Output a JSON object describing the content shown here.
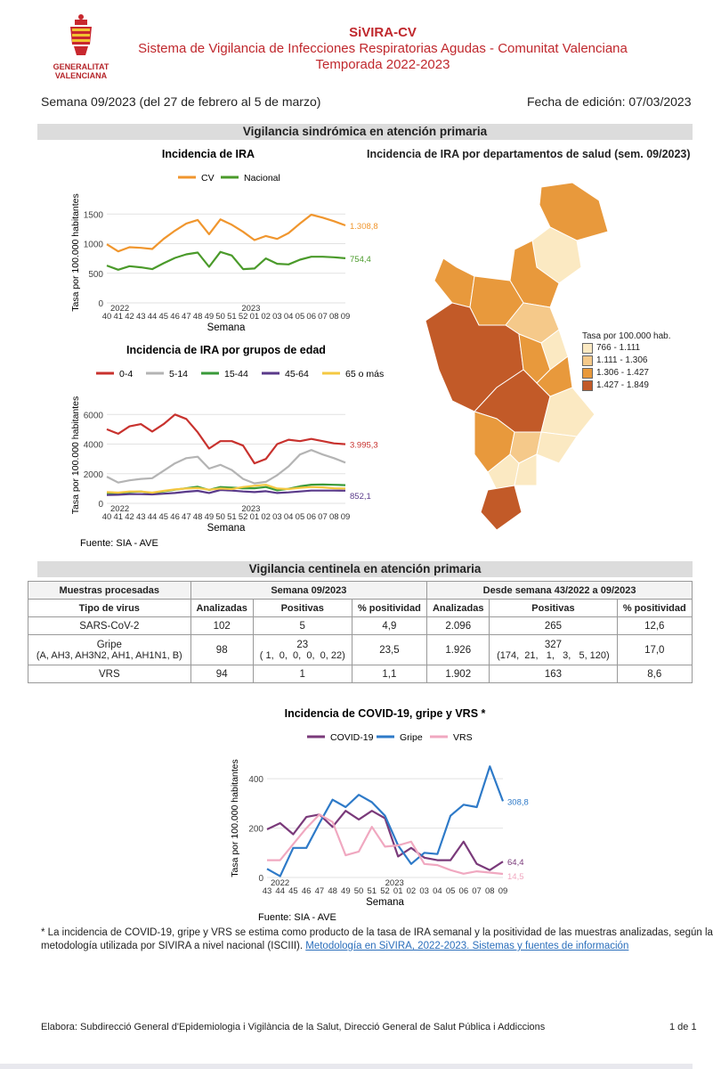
{
  "header": {
    "title": "SiVIRA-CV",
    "subtitle": "Sistema de Vigilancia de Infecciones Respiratorias Agudas - Comunitat Valenciana",
    "season": "Temporada 2022-2023",
    "logo_text_1": "GENERALITAT",
    "logo_text_2": "VALENCIANA",
    "week": "Semana 09/2023 (del 27 de febrero al 5 de marzo)",
    "edition_date": "Fecha de edición: 07/03/2023"
  },
  "section1_title": "Vigilancia sindrómica en atención primaria",
  "section2_title": "Vigilancia centinela en atención primaria",
  "colors": {
    "cv": "#f0962e",
    "nacional": "#4a9a2a",
    "age_0_4": "#c8322e",
    "age_5_14": "#b4b4b4",
    "age_15_44": "#3a9a3a",
    "age_45_64": "#5a3a8a",
    "age_65": "#f5c842",
    "covid": "#7a3a7a",
    "gripe": "#2e7ac8",
    "vrs": "#f0a8c0"
  },
  "chart_data": [
    {
      "type": "line",
      "title": "Incidencia de IRA",
      "xlabel": "Semana",
      "ylabel": "Tasa por 100.000 habitantes",
      "x": [
        "40",
        "41",
        "42",
        "43",
        "44",
        "45",
        "46",
        "47",
        "48",
        "49",
        "50",
        "51",
        "52",
        "01",
        "02",
        "03",
        "04",
        "05",
        "06",
        "07",
        "08",
        "09"
      ],
      "year_labels": [
        "2022",
        "2023"
      ],
      "yticks": [
        "0",
        "500",
        "1000",
        "1500"
      ],
      "ylim": [
        0,
        1700
      ],
      "series": [
        {
          "name": "CV",
          "values": [
            990,
            870,
            940,
            930,
            910,
            1080,
            1220,
            1340,
            1400,
            1160,
            1410,
            1320,
            1200,
            1060,
            1130,
            1080,
            1180,
            1340,
            1490,
            1440,
            1380,
            1308.8
          ],
          "end_label": "1.308,8"
        },
        {
          "name": "Nacional",
          "values": [
            630,
            560,
            620,
            600,
            570,
            670,
            760,
            820,
            850,
            610,
            860,
            800,
            570,
            580,
            750,
            660,
            650,
            730,
            780,
            780,
            770,
            754.4
          ],
          "end_label": "754,4"
        }
      ]
    },
    {
      "type": "line",
      "title": "Incidencia de IRA por grupos de edad",
      "xlabel": "Semana",
      "ylabel": "Tasa por 100.000 habitantes",
      "x": [
        "40",
        "41",
        "42",
        "43",
        "44",
        "45",
        "46",
        "47",
        "48",
        "49",
        "50",
        "51",
        "52",
        "01",
        "02",
        "03",
        "04",
        "05",
        "06",
        "07",
        "08",
        "09"
      ],
      "year_labels": [
        "2022",
        "2023"
      ],
      "yticks": [
        "0",
        "2000",
        "4000",
        "6000"
      ],
      "ylim": [
        0,
        6500
      ],
      "series": [
        {
          "name": "0-4",
          "values": [
            5000,
            4700,
            5200,
            5350,
            4850,
            5350,
            6000,
            5700,
            4800,
            3700,
            4200,
            4200,
            3900,
            2700,
            3000,
            4000,
            4300,
            4200,
            4350,
            4200,
            4050,
            3995.3
          ],
          "end_label": "3.995,3"
        },
        {
          "name": "5-14",
          "values": [
            1800,
            1400,
            1550,
            1650,
            1700,
            2200,
            2700,
            3050,
            3150,
            2350,
            2600,
            2250,
            1650,
            1350,
            1450,
            1900,
            2500,
            3300,
            3600,
            3300,
            3050,
            2750
          ]
        },
        {
          "name": "15-44",
          "values": [
            700,
            700,
            760,
            800,
            680,
            800,
            920,
            1020,
            1120,
            900,
            1100,
            1060,
            1020,
            1020,
            1100,
            880,
            980,
            1150,
            1260,
            1270,
            1250,
            1230
          ]
        },
        {
          "name": "45-64",
          "values": [
            560,
            580,
            620,
            620,
            600,
            650,
            700,
            780,
            840,
            700,
            900,
            860,
            800,
            760,
            820,
            700,
            740,
            800,
            860,
            860,
            860,
            852.1
          ],
          "end_label": "852,1"
        },
        {
          "name": "65 o más",
          "values": [
            760,
            720,
            800,
            800,
            720,
            840,
            940,
            1000,
            1030,
            920,
            1000,
            960,
            1100,
            1180,
            1250,
            1000,
            960,
            1050,
            1100,
            1080,
            1020,
            1000
          ]
        }
      ],
      "source": "Fuente: SIA - AVE"
    },
    {
      "type": "line",
      "title": "Incidencia de COVID-19, gripe y VRS *",
      "xlabel": "Semana",
      "ylabel": "Tasa por 100.000 habitantes",
      "x": [
        "43",
        "44",
        "45",
        "46",
        "47",
        "48",
        "49",
        "50",
        "51",
        "52",
        "01",
        "02",
        "03",
        "04",
        "05",
        "06",
        "07",
        "08",
        "09"
      ],
      "year_labels": [
        "2022",
        "2023"
      ],
      "yticks": [
        "0",
        "200",
        "400"
      ],
      "ylim": [
        0,
        480
      ],
      "series": [
        {
          "name": "COVID-19",
          "values": [
            195,
            220,
            175,
            245,
            255,
            205,
            270,
            235,
            270,
            240,
            85,
            120,
            80,
            70,
            70,
            145,
            55,
            30,
            64.4
          ],
          "end_label": "64,4"
        },
        {
          "name": "Gripe",
          "values": [
            35,
            5,
            120,
            120,
            220,
            315,
            285,
            335,
            305,
            250,
            130,
            55,
            100,
            95,
            250,
            295,
            285,
            450,
            308.8
          ],
          "end_label": "308,8"
        },
        {
          "name": "VRS",
          "values": [
            70,
            70,
            135,
            200,
            255,
            225,
            90,
            105,
            205,
            125,
            130,
            145,
            55,
            50,
            30,
            15,
            25,
            20,
            14.5
          ],
          "end_label": "14,5"
        }
      ],
      "source": "Fuente: SIA - AVE"
    }
  ],
  "map": {
    "title": "Incidencia de IRA por departamentos de salud (sem. 09/2023)",
    "legend_title": "Tasa por 100.000 hab.",
    "legend": [
      {
        "label": "766 - 1.111",
        "color": "#fbe9c2"
      },
      {
        "label": "1.111 - 1.306",
        "color": "#f5c98a"
      },
      {
        "label": "1.306 - 1.427",
        "color": "#e8993c"
      },
      {
        "label": "1.427 - 1.849",
        "color": "#c25a28"
      }
    ]
  },
  "table": {
    "head1": [
      "Muestras procesadas",
      "Semana 09/2023",
      "Desde semana 43/2022 a 09/2023"
    ],
    "head2": [
      "Tipo de virus",
      "Analizadas",
      "Positivas",
      "% positividad",
      "Analizadas",
      "Positivas",
      "% positividad"
    ],
    "rows": [
      {
        "virus": "SARS-CoV-2",
        "virus2": "",
        "a1": "102",
        "p1": "5",
        "p1b": "",
        "pct1": "4,9",
        "a2": "2.096",
        "p2": "265",
        "p2b": "",
        "pct2": "12,6"
      },
      {
        "virus": "Gripe",
        "virus2": "(A, AH3, AH3N2, AH1, AH1N1, B)",
        "a1": "98",
        "p1": "23",
        "p1b": "( 1,  0,  0,  0,  0, 22)",
        "pct1": "23,5",
        "a2": "1.926",
        "p2": "327",
        "p2b": "(174,  21,   1,   3,   5, 120)",
        "pct2": "17,0"
      },
      {
        "virus": "VRS",
        "virus2": "",
        "a1": "94",
        "p1": "1",
        "p1b": "",
        "pct1": "1,1",
        "a2": "1.902",
        "p2": "163",
        "p2b": "",
        "pct2": "8,6"
      }
    ]
  },
  "footnote": "* La incidencia de COVID-19, gripe y VRS se estima como producto de la tasa de IRA semanal y la positividad de las muestras analizadas, según la",
  "footnote2": "metodología utilizada por SIVIRA a nivel nacional (ISCIII).",
  "footnote_link": "Metodología en SiVIRA, 2022-2023. Sistemas y fuentes de información",
  "footer": "Elabora: Subdirecció General d'Epidemiologia i Vigilància de la Salut, Direcció General de Salut Pública i Addiccions",
  "page": "1 de 1"
}
